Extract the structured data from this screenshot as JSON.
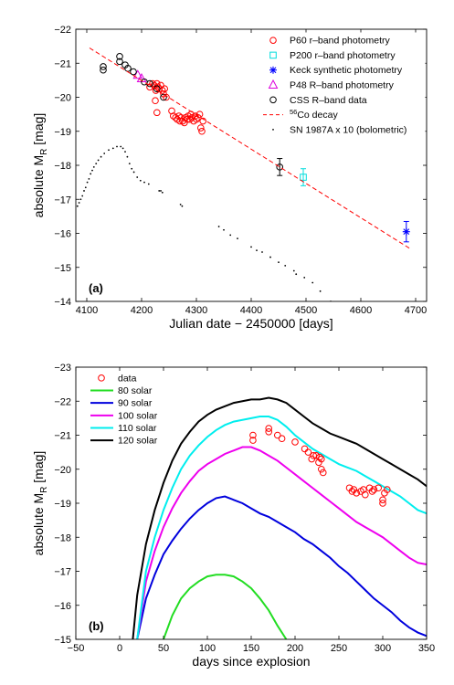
{
  "chart_data": [
    {
      "type": "scatter",
      "panel_label": "(a)",
      "xlabel": "Julian date − 2450000 [days]",
      "ylabel_main": "absolute M",
      "ylabel_sub": "R",
      "ylabel_unit": " [mag]",
      "xlim": [
        4080,
        4720
      ],
      "ylim": [
        -14,
        -22
      ],
      "y_inverted": true,
      "xticks": [
        4100,
        4200,
        4300,
        4400,
        4500,
        4600,
        4700
      ],
      "yticks": [
        -22,
        -21,
        -20,
        -19,
        -18,
        -17,
        -16,
        -15,
        -14
      ],
      "legend_position": "top-right",
      "series": [
        {
          "name": "P60 r–band photometry",
          "marker": "circle",
          "color": "#ff0000",
          "points": [
            [
              4215,
              -20.3
            ],
            [
              4220,
              -20.4
            ],
            [
              4223,
              -20.35
            ],
            [
              4226,
              -20.2
            ],
            [
              4228,
              -20.4
            ],
            [
              4230,
              -20.3
            ],
            [
              4232,
              -20.25
            ],
            [
              4235,
              -20.35
            ],
            [
              4238,
              -20.2
            ],
            [
              4240,
              -20.1
            ],
            [
              4242,
              -20.25
            ],
            [
              4245,
              -20.0
            ],
            [
              4225,
              -19.9
            ],
            [
              4228,
              -19.55
            ],
            [
              4255,
              -19.6
            ],
            [
              4258,
              -19.45
            ],
            [
              4262,
              -19.4
            ],
            [
              4265,
              -19.35
            ],
            [
              4268,
              -19.45
            ],
            [
              4270,
              -19.3
            ],
            [
              4272,
              -19.4
            ],
            [
              4275,
              -19.3
            ],
            [
              4278,
              -19.25
            ],
            [
              4280,
              -19.4
            ],
            [
              4283,
              -19.35
            ],
            [
              4285,
              -19.45
            ],
            [
              4288,
              -19.35
            ],
            [
              4290,
              -19.5
            ],
            [
              4292,
              -19.4
            ],
            [
              4295,
              -19.3
            ],
            [
              4298,
              -19.45
            ],
            [
              4300,
              -19.35
            ],
            [
              4303,
              -19.4
            ],
            [
              4306,
              -19.5
            ],
            [
              4308,
              -19.1
            ],
            [
              4310,
              -19.0
            ],
            [
              4312,
              -19.3
            ]
          ]
        },
        {
          "name": "P200 r–band photometry",
          "marker": "square",
          "color": "#00dddd",
          "points": [
            [
              4495,
              -17.65
            ]
          ],
          "err": [
            0.25
          ]
        },
        {
          "name": "Keck synthetic photometry",
          "marker": "asterisk",
          "color": "#0000ff",
          "points": [
            [
              4683,
              -16.05
            ]
          ],
          "err": [
            0.3
          ]
        },
        {
          "name": "P48 R–band photometry",
          "marker": "triangle",
          "color": "#dd00dd",
          "points": [
            [
              4193,
              -20.65
            ],
            [
              4200,
              -20.55
            ]
          ]
        },
        {
          "name": "CSS R–band data",
          "marker": "circle",
          "color": "#000000",
          "points": [
            [
              4130,
              -20.8
            ],
            [
              4130,
              -20.9
            ],
            [
              4160,
              -21.2
            ],
            [
              4160,
              -21.05
            ],
            [
              4170,
              -20.95
            ],
            [
              4175,
              -20.85
            ],
            [
              4185,
              -20.75
            ],
            [
              4205,
              -20.45
            ],
            [
              4215,
              -20.4
            ],
            [
              4228,
              -20.25
            ],
            [
              4240,
              -20.0
            ],
            [
              4452,
              -17.95
            ]
          ],
          "err": [
            0,
            0,
            0,
            0,
            0,
            0,
            0,
            0,
            0,
            0,
            0,
            0.25
          ]
        },
        {
          "name": "56Co decay",
          "name_sup": "56",
          "name_rest": "Co decay",
          "marker": "dashed-line",
          "color": "#ff0000",
          "points": [
            [
              4105,
              -21.45
            ],
            [
              4690,
              -15.55
            ]
          ]
        },
        {
          "name": "SN 1987A x 10 (bolometric)",
          "marker": "dot",
          "color": "#000000",
          "points": [
            [
              4083,
              -16.8
            ],
            [
              4086,
              -16.9
            ],
            [
              4089,
              -17.0
            ],
            [
              4092,
              -17.1
            ],
            [
              4095,
              -17.25
            ],
            [
              4098,
              -17.35
            ],
            [
              4101,
              -17.5
            ],
            [
              4104,
              -17.6
            ],
            [
              4107,
              -17.75
            ],
            [
              4110,
              -17.85
            ],
            [
              4113,
              -17.95
            ],
            [
              4117,
              -18.05
            ],
            [
              4121,
              -18.15
            ],
            [
              4126,
              -18.25
            ],
            [
              4132,
              -18.35
            ],
            [
              4140,
              -18.45
            ],
            [
              4148,
              -18.5
            ],
            [
              4155,
              -18.55
            ],
            [
              4162,
              -18.55
            ],
            [
              4166,
              -18.5
            ],
            [
              4170,
              -18.4
            ],
            [
              4174,
              -18.25
            ],
            [
              4178,
              -18.05
            ],
            [
              4182,
              -17.9
            ],
            [
              4186,
              -17.8
            ],
            [
              4192,
              -17.65
            ],
            [
              4198,
              -17.55
            ],
            [
              4205,
              -17.5
            ],
            [
              4213,
              -17.45
            ],
            [
              4232,
              -17.25
            ],
            [
              4235,
              -17.25
            ],
            [
              4238,
              -17.2
            ],
            [
              4271,
              -16.85
            ],
            [
              4274,
              -16.8
            ],
            [
              4341,
              -16.2
            ],
            [
              4350,
              -16.1
            ],
            [
              4362,
              -15.95
            ],
            [
              4375,
              -15.85
            ],
            [
              4400,
              -15.6
            ],
            [
              4410,
              -15.5
            ],
            [
              4420,
              -15.45
            ],
            [
              4435,
              -15.3
            ],
            [
              4450,
              -15.15
            ],
            [
              4462,
              -15.05
            ],
            [
              4478,
              -14.9
            ],
            [
              4482,
              -14.8
            ],
            [
              4497,
              -14.7
            ],
            [
              4512,
              -14.55
            ],
            [
              4526,
              -14.3
            ],
            [
              4545,
              -14.0
            ]
          ]
        }
      ]
    },
    {
      "type": "line",
      "panel_label": "(b)",
      "xlabel": "days since explosion",
      "ylabel_main": "absolute M",
      "ylabel_sub": "R",
      "ylabel_unit": " [mag]",
      "xlim": [
        -50,
        350
      ],
      "ylim": [
        -15,
        -23
      ],
      "y_inverted": true,
      "xticks": [
        -50,
        0,
        50,
        100,
        150,
        200,
        250,
        300,
        350
      ],
      "yticks": [
        -23,
        -22,
        -21,
        -20,
        -19,
        -18,
        -17,
        -16,
        -15
      ],
      "legend_position": "top-left",
      "data_points": {
        "name": "data",
        "marker": "circle",
        "color": "#ff0000",
        "points": [
          [
            152,
            -21.0
          ],
          [
            152,
            -20.85
          ],
          [
            170,
            -21.1
          ],
          [
            170,
            -21.2
          ],
          [
            180,
            -21.0
          ],
          [
            185,
            -20.9
          ],
          [
            200,
            -20.8
          ],
          [
            211,
            -20.6
          ],
          [
            221,
            -20.4
          ],
          [
            215,
            -20.5
          ],
          [
            219,
            -20.3
          ],
          [
            224,
            -20.4
          ],
          [
            227,
            -20.2
          ],
          [
            228,
            -20.35
          ],
          [
            230,
            -20.3
          ],
          [
            230,
            -20.0
          ],
          [
            232,
            -19.9
          ],
          [
            262,
            -19.45
          ],
          [
            265,
            -19.35
          ],
          [
            267,
            -19.4
          ],
          [
            270,
            -19.3
          ],
          [
            275,
            -19.35
          ],
          [
            278,
            -19.4
          ],
          [
            280,
            -19.25
          ],
          [
            285,
            -19.45
          ],
          [
            288,
            -19.35
          ],
          [
            290,
            -19.4
          ],
          [
            295,
            -19.45
          ],
          [
            300,
            -19.1
          ],
          [
            300,
            -19.0
          ],
          [
            302,
            -19.3
          ],
          [
            305,
            -19.4
          ]
        ]
      },
      "series": [
        {
          "name": "80 solar",
          "color": "#22dd22",
          "x": [
            50,
            60,
            70,
            80,
            90,
            100,
            110,
            120,
            130,
            140,
            150,
            160,
            170,
            180,
            190
          ],
          "y": [
            -15.0,
            -15.7,
            -16.2,
            -16.5,
            -16.7,
            -16.85,
            -16.9,
            -16.9,
            -16.85,
            -16.7,
            -16.5,
            -16.2,
            -15.85,
            -15.4,
            -15.0
          ]
        },
        {
          "name": "90 solar",
          "color": "#0000dd",
          "x": [
            20,
            30,
            40,
            50,
            60,
            70,
            80,
            90,
            100,
            110,
            120,
            130,
            140,
            150,
            160,
            170,
            180,
            190,
            200,
            210,
            220,
            230,
            240,
            250,
            260,
            270,
            280,
            290,
            300,
            310,
            320,
            330,
            340,
            350
          ],
          "y": [
            -15.0,
            -16.2,
            -16.9,
            -17.5,
            -17.9,
            -18.25,
            -18.55,
            -18.8,
            -19.0,
            -19.15,
            -19.2,
            -19.1,
            -19.0,
            -18.85,
            -18.7,
            -18.6,
            -18.45,
            -18.3,
            -18.15,
            -17.95,
            -17.8,
            -17.6,
            -17.4,
            -17.15,
            -16.95,
            -16.7,
            -16.45,
            -16.2,
            -16.0,
            -15.8,
            -15.55,
            -15.35,
            -15.2,
            -15.1
          ]
        },
        {
          "name": "100 solar",
          "color": "#ee00ee",
          "x": [
            20,
            30,
            40,
            50,
            60,
            70,
            80,
            90,
            100,
            110,
            120,
            130,
            140,
            150,
            160,
            170,
            180,
            190,
            200,
            210,
            220,
            230,
            240,
            250,
            260,
            270,
            280,
            290,
            300,
            310,
            320,
            330,
            340,
            350
          ],
          "y": [
            -15.0,
            -16.7,
            -17.6,
            -18.3,
            -18.85,
            -19.3,
            -19.65,
            -19.95,
            -20.15,
            -20.3,
            -20.45,
            -20.55,
            -20.65,
            -20.65,
            -20.55,
            -20.4,
            -20.25,
            -20.05,
            -19.85,
            -19.65,
            -19.45,
            -19.25,
            -19.05,
            -18.85,
            -18.65,
            -18.45,
            -18.3,
            -18.15,
            -18.0,
            -17.8,
            -17.6,
            -17.4,
            -17.25,
            -17.2
          ]
        },
        {
          "name": "110 solar",
          "color": "#00eeee",
          "x": [
            20,
            30,
            40,
            50,
            60,
            70,
            80,
            90,
            100,
            110,
            120,
            130,
            140,
            150,
            160,
            170,
            180,
            190,
            200,
            210,
            220,
            230,
            240,
            250,
            260,
            270,
            280,
            290,
            300,
            310,
            320,
            330,
            340,
            350
          ],
          "y": [
            -15.0,
            -17.0,
            -18.0,
            -18.8,
            -19.45,
            -20.0,
            -20.4,
            -20.7,
            -20.95,
            -21.15,
            -21.3,
            -21.4,
            -21.45,
            -21.5,
            -21.55,
            -21.55,
            -21.45,
            -21.25,
            -21.0,
            -20.8,
            -20.6,
            -20.45,
            -20.3,
            -20.15,
            -20.05,
            -19.95,
            -19.8,
            -19.65,
            -19.5,
            -19.35,
            -19.2,
            -19.0,
            -18.8,
            -18.7
          ]
        },
        {
          "name": "120 solar",
          "color": "#000000",
          "x": [
            15,
            20,
            30,
            40,
            50,
            60,
            70,
            80,
            90,
            100,
            110,
            120,
            130,
            140,
            150,
            160,
            170,
            180,
            190,
            200,
            210,
            220,
            230,
            240,
            250,
            260,
            270,
            280,
            290,
            300,
            310,
            320,
            330,
            340,
            350
          ],
          "y": [
            -15.0,
            -16.3,
            -17.8,
            -18.8,
            -19.6,
            -20.25,
            -20.75,
            -21.1,
            -21.4,
            -21.6,
            -21.75,
            -21.85,
            -21.95,
            -22.0,
            -22.05,
            -22.05,
            -22.1,
            -22.05,
            -21.95,
            -21.75,
            -21.55,
            -21.35,
            -21.2,
            -21.05,
            -20.95,
            -20.85,
            -20.75,
            -20.6,
            -20.45,
            -20.3,
            -20.15,
            -20.0,
            -19.85,
            -19.7,
            -19.5
          ]
        }
      ]
    }
  ]
}
